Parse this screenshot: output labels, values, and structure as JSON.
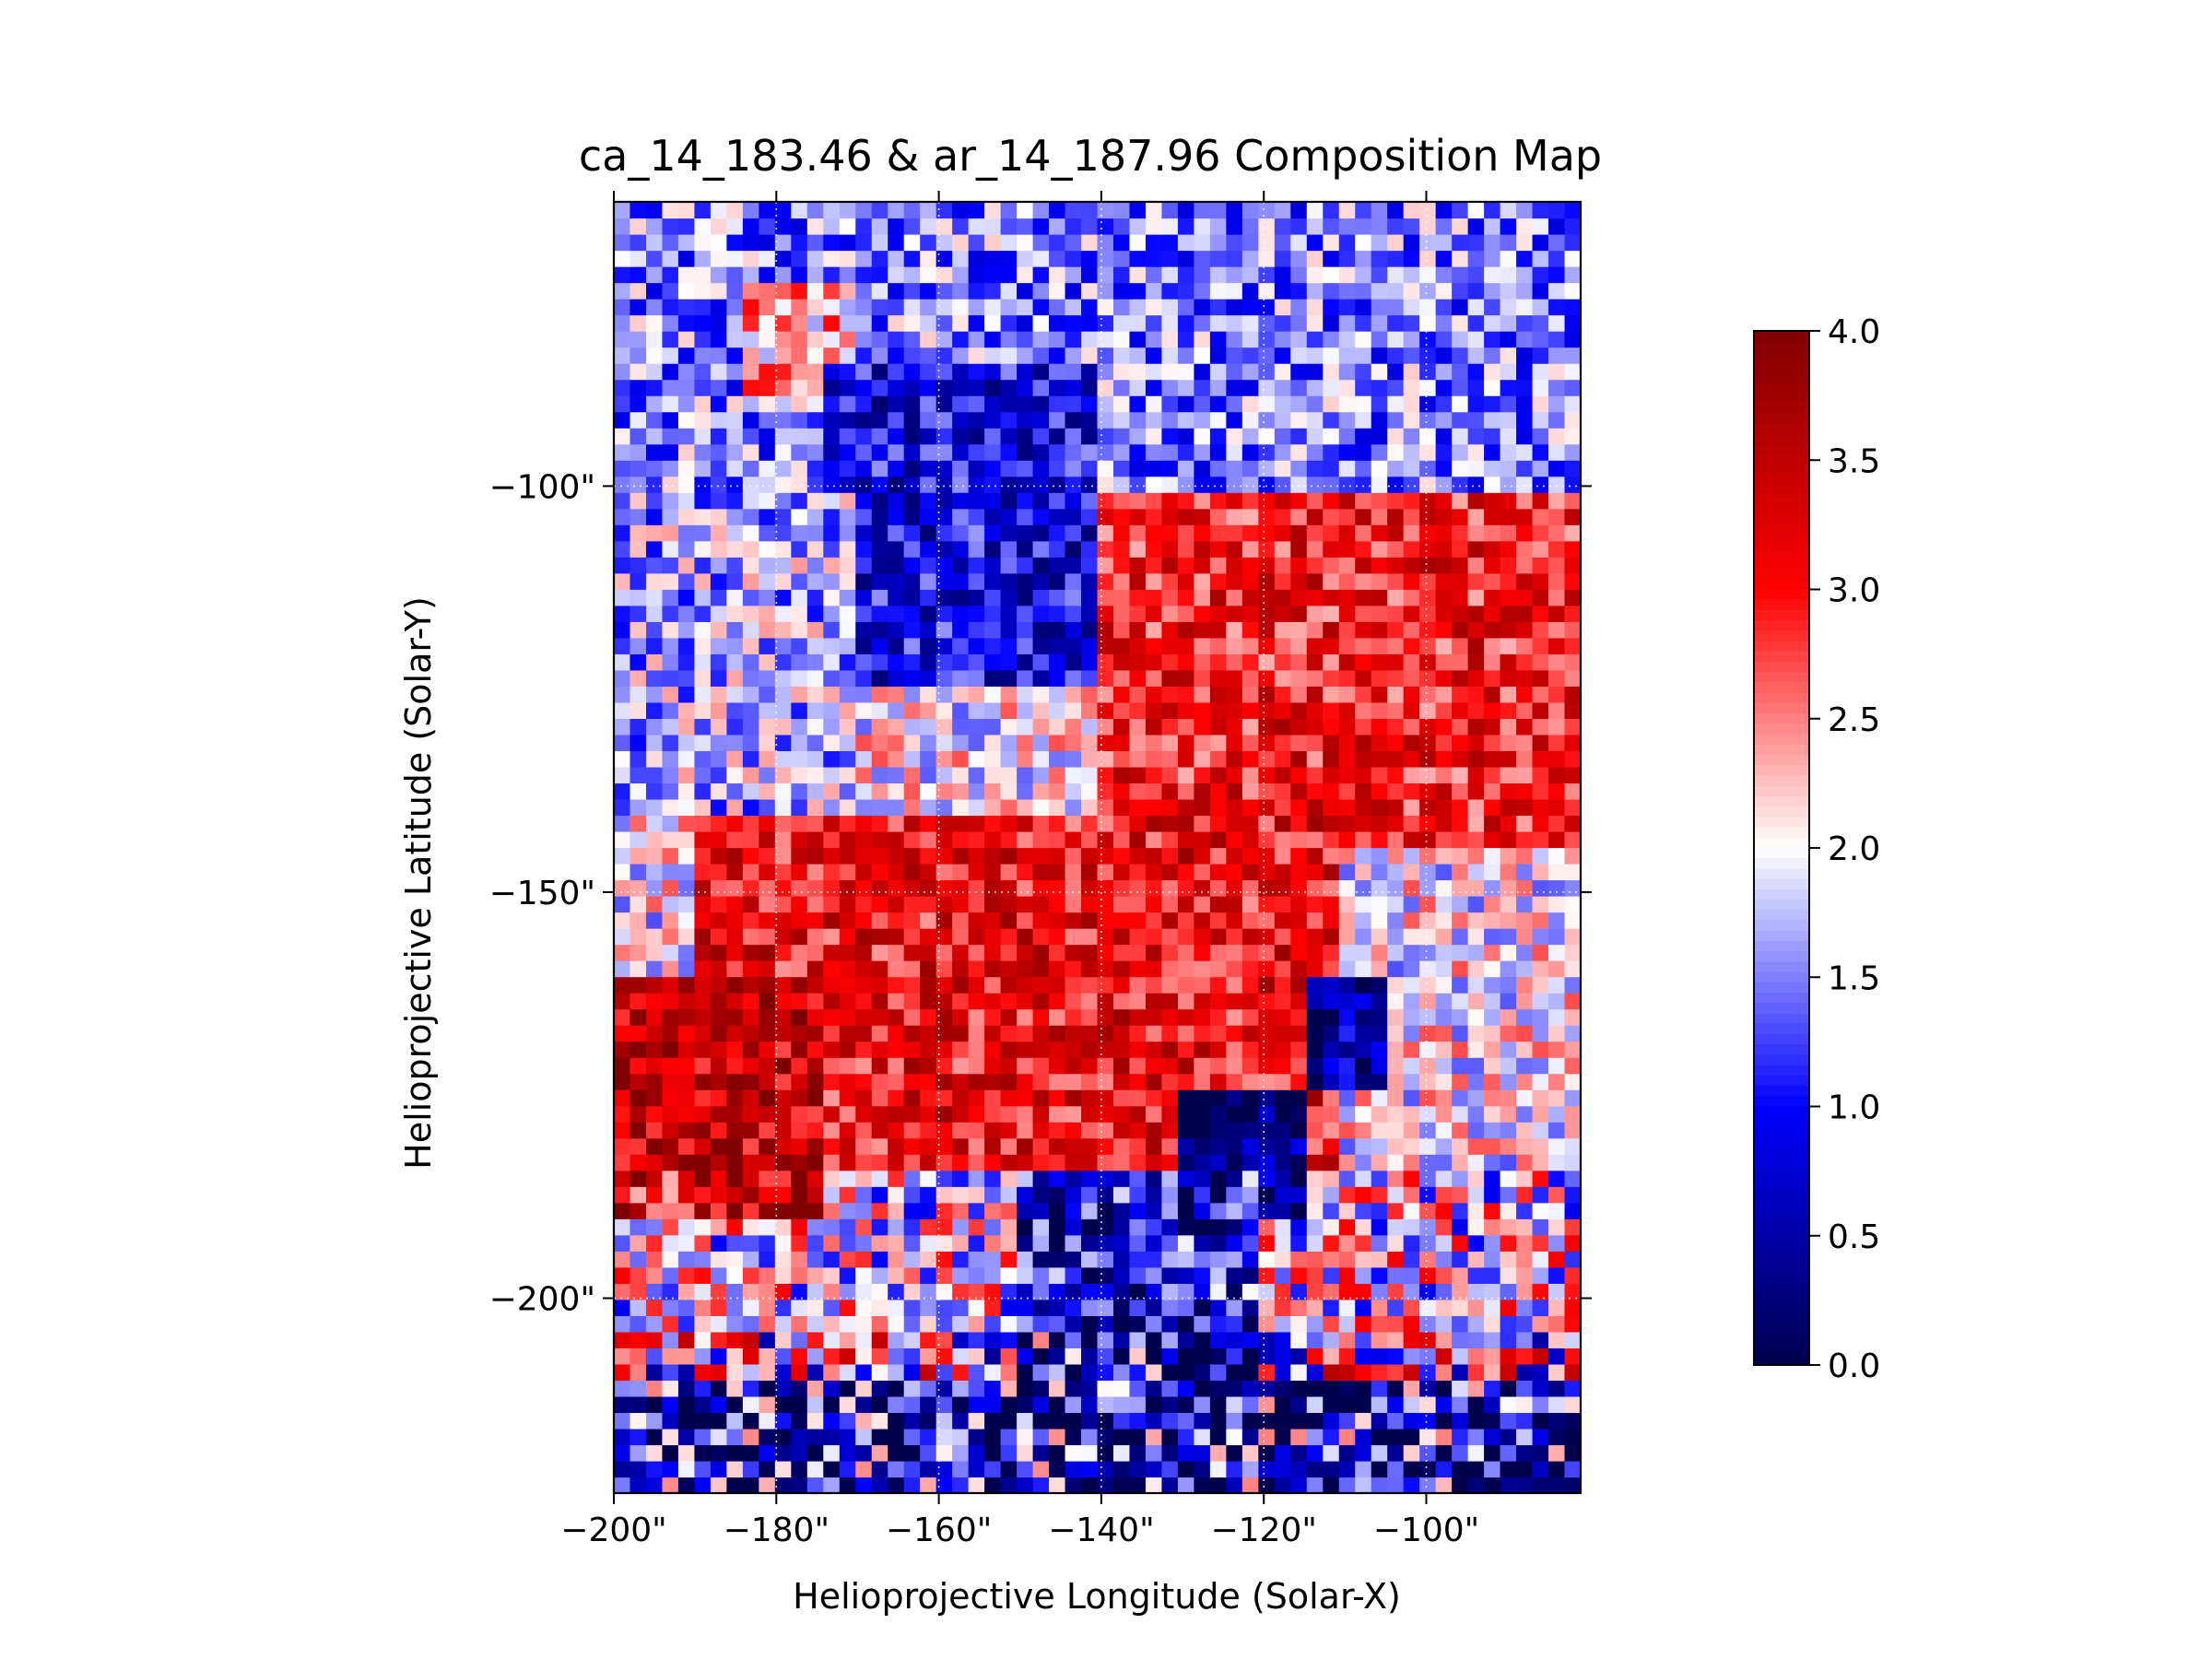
{
  "chart_data": {
    "type": "heatmap",
    "title": "ca_14_183.46 & ar_14_187.96 Composition Map",
    "xlabel": "Helioprojective Longitude (Solar-X)",
    "ylabel": "Helioprojective Latitude (Solar-Y)",
    "xlim": [
      -200,
      -81
    ],
    "ylim": [
      -224,
      -65
    ],
    "x_ticks": [
      -200,
      -180,
      -160,
      -140,
      -120,
      -100
    ],
    "x_tick_labels": [
      "−200\"",
      "−180\"",
      "−160\"",
      "−140\"",
      "−120\"",
      "−100\""
    ],
    "y_ticks": [
      -100,
      -150,
      -200
    ],
    "y_tick_labels": [
      "−100\"",
      "−150\"",
      "−200\""
    ],
    "grid": true,
    "colormap": "seismic",
    "colorbar": {
      "min": 0.0,
      "max": 4.0,
      "ticks": [
        0.0,
        0.5,
        1.0,
        1.5,
        2.0,
        2.5,
        3.0,
        3.5,
        4.0
      ],
      "tick_labels": [
        "0.0",
        "0.5",
        "1.0",
        "1.5",
        "2.0",
        "2.5",
        "3.0",
        "3.5",
        "4.0"
      ]
    },
    "grid_size": {
      "cols": 60,
      "rows": 80
    },
    "regions": [
      {
        "x": [
          -200,
          -81
        ],
        "y": [
          -100,
          -65
        ],
        "value": 1.5,
        "note": "upper field mostly blue"
      },
      {
        "x": [
          -185,
          -170
        ],
        "y": [
          -90,
          -75
        ],
        "value": 2.3,
        "note": "pale red patch top-left"
      },
      {
        "x": [
          -175,
          -140
        ],
        "y": [
          -125,
          -85
        ],
        "value": 0.9,
        "note": "deep blue band"
      },
      {
        "x": [
          -200,
          -170
        ],
        "y": [
          -140,
          -100
        ],
        "value": 1.7,
        "note": "light blue left"
      },
      {
        "x": [
          -140,
          -81
        ],
        "y": [
          -145,
          -100
        ],
        "value": 3.0,
        "note": "red right side"
      },
      {
        "x": [
          -190,
          -110
        ],
        "y": [
          -185,
          -140
        ],
        "value": 3.1,
        "note": "red middle band"
      },
      {
        "x": [
          -200,
          -175
        ],
        "y": [
          -190,
          -160
        ],
        "value": 3.4,
        "note": "dark red left"
      },
      {
        "x": [
          -115,
          -105
        ],
        "y": [
          -175,
          -160
        ],
        "value": 0.6,
        "note": "dark blue spot"
      },
      {
        "x": [
          -130,
          -115
        ],
        "y": [
          -190,
          -175
        ],
        "value": 0.2,
        "note": "navy blob"
      },
      {
        "x": [
          -150,
          -120
        ],
        "y": [
          -210,
          -185
        ],
        "value": 0.9,
        "note": "blue band lower middle"
      },
      {
        "x": [
          -200,
          -81
        ],
        "y": [
          -224,
          -210
        ],
        "value": 0.9,
        "note": "noisy bottom, mostly blue"
      }
    ]
  }
}
